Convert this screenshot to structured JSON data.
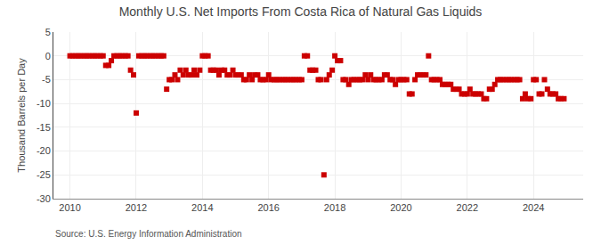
{
  "chart_data": {
    "type": "scatter",
    "title": "Monthly U.S. Net Imports From Costa Rica of Natural Gas Liquids",
    "ylabel": "Thousand Barrels per Day",
    "annotations": [
      {
        "text": "Source: U.S. Energy Information Administration"
      }
    ],
    "color": "#cc0000",
    "marker": "square",
    "grid": true,
    "xlim": [
      2009.5,
      2025.5
    ],
    "xticks": [
      2010,
      2012,
      2014,
      2016,
      2018,
      2020,
      2022,
      2024
    ],
    "ylim": [
      -30,
      5
    ],
    "yticks": [
      5,
      0,
      -5,
      -10,
      -15,
      -20,
      -25,
      -30
    ],
    "x": [
      2010.0,
      2010.08,
      2010.17,
      2010.25,
      2010.33,
      2010.42,
      2010.5,
      2010.58,
      2010.67,
      2010.75,
      2010.83,
      2010.92,
      2011.0,
      2011.08,
      2011.17,
      2011.25,
      2011.33,
      2011.42,
      2011.5,
      2011.58,
      2011.67,
      2011.75,
      2011.83,
      2011.92,
      2012.0,
      2012.08,
      2012.17,
      2012.25,
      2012.33,
      2012.42,
      2012.5,
      2012.58,
      2012.67,
      2012.75,
      2012.83,
      2012.92,
      2013.0,
      2013.08,
      2013.17,
      2013.25,
      2013.33,
      2013.42,
      2013.5,
      2013.58,
      2013.67,
      2013.75,
      2013.83,
      2013.92,
      2014.0,
      2014.08,
      2014.17,
      2014.25,
      2014.33,
      2014.42,
      2014.5,
      2014.58,
      2014.67,
      2014.75,
      2014.83,
      2014.92,
      2015.0,
      2015.08,
      2015.17,
      2015.25,
      2015.33,
      2015.42,
      2015.5,
      2015.58,
      2015.67,
      2015.75,
      2015.83,
      2015.92,
      2016.0,
      2016.08,
      2016.17,
      2016.25,
      2016.33,
      2016.42,
      2016.5,
      2016.58,
      2016.67,
      2016.75,
      2016.83,
      2016.92,
      2017.0,
      2017.08,
      2017.17,
      2017.25,
      2017.33,
      2017.42,
      2017.5,
      2017.58,
      2017.67,
      2017.75,
      2017.83,
      2017.92,
      2018.0,
      2018.08,
      2018.17,
      2018.25,
      2018.33,
      2018.42,
      2018.5,
      2018.58,
      2018.67,
      2018.75,
      2018.83,
      2018.92,
      2019.0,
      2019.08,
      2019.17,
      2019.25,
      2019.33,
      2019.42,
      2019.5,
      2019.58,
      2019.67,
      2019.75,
      2019.83,
      2019.92,
      2020.0,
      2020.08,
      2020.17,
      2020.25,
      2020.33,
      2020.42,
      2020.5,
      2020.58,
      2020.67,
      2020.75,
      2020.83,
      2020.92,
      2021.0,
      2021.08,
      2021.17,
      2021.25,
      2021.33,
      2021.42,
      2021.5,
      2021.58,
      2021.67,
      2021.75,
      2021.83,
      2021.92,
      2022.0,
      2022.08,
      2022.17,
      2022.25,
      2022.33,
      2022.42,
      2022.5,
      2022.58,
      2022.67,
      2022.75,
      2022.83,
      2022.92,
      2023.0,
      2023.08,
      2023.17,
      2023.25,
      2023.33,
      2023.42,
      2023.5,
      2023.58,
      2023.67,
      2023.75,
      2023.83,
      2023.92,
      2024.0,
      2024.08,
      2024.17,
      2024.25,
      2024.33,
      2024.42,
      2024.5,
      2024.58,
      2024.67,
      2024.75,
      2024.83,
      2024.92
    ],
    "values": [
      0,
      0,
      0,
      0,
      0,
      0,
      0,
      0,
      0,
      0,
      0,
      0,
      0,
      -2,
      -2,
      -1,
      0,
      0,
      0,
      0,
      0,
      0,
      -3,
      -4,
      -12,
      0,
      0,
      0,
      0,
      0,
      0,
      0,
      0,
      0,
      0,
      -7,
      -5,
      -5,
      -4,
      -5,
      -3,
      -4,
      -3,
      -4,
      -4,
      -3,
      -4,
      -3,
      0,
      0,
      0,
      -3,
      -3,
      -3,
      -4,
      -3,
      -3,
      -4,
      -4,
      -3,
      -4,
      -4,
      -4,
      -5,
      -5,
      -4,
      -5,
      -4,
      -4,
      -5,
      -5,
      -5,
      -4,
      -5,
      -5,
      -5,
      -5,
      -5,
      -5,
      -5,
      -5,
      -5,
      -5,
      -5,
      -5,
      0,
      0,
      -3,
      -3,
      -3,
      -5,
      -5,
      -25,
      -5,
      -4,
      -3,
      0,
      -1,
      -1,
      -5,
      -5,
      -6,
      -5,
      -5,
      -5,
      -5,
      -5,
      -4,
      -5,
      -4,
      -5,
      -5,
      -5,
      -5,
      -4,
      -4,
      -5,
      -5,
      -6,
      -5,
      -5,
      -5,
      -5,
      -8,
      -8,
      -5,
      -4,
      -4,
      -4,
      -4,
      0,
      -5,
      -5,
      -5,
      -5,
      -6,
      -6,
      -6,
      -6,
      -7,
      -7,
      -7,
      -8,
      -8,
      -8,
      -7,
      -8,
      -8,
      -8,
      -8,
      -9,
      -9,
      -7,
      -7,
      -6,
      -5,
      -5,
      -5,
      -5,
      -5,
      -5,
      -5,
      -5,
      -5,
      -9,
      -8,
      -9,
      -9,
      -5,
      -5,
      -8,
      -8,
      -5,
      -7,
      -8,
      -8,
      -8,
      -9,
      -9,
      -9
    ]
  }
}
